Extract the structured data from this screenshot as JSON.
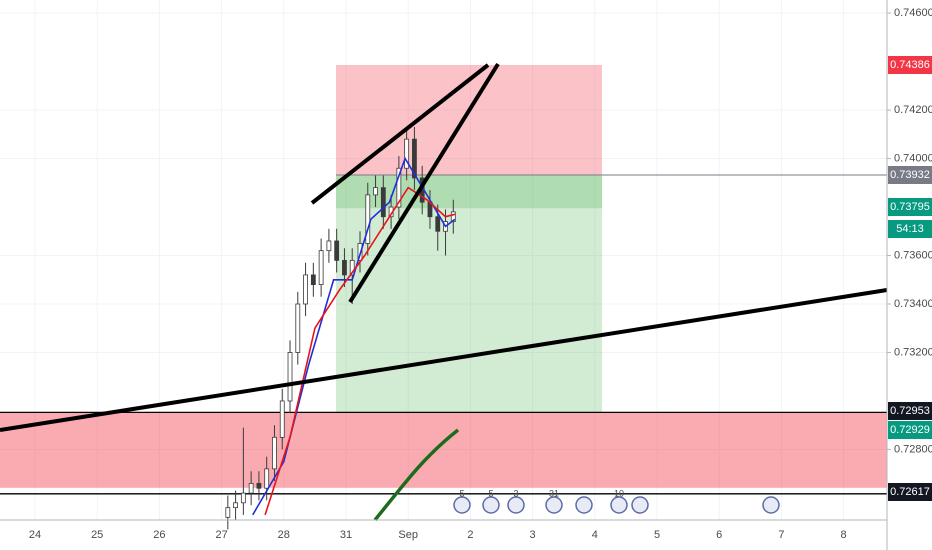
{
  "chart_data": {
    "type": "candlestick",
    "categories": [
      "24",
      "25",
      "26",
      "27",
      "28",
      "31",
      "Sep",
      "2",
      "3",
      "4",
      "5",
      "6",
      "7",
      "8"
    ],
    "x": [
      3.1,
      3.225,
      3.35,
      3.475,
      3.6,
      3.725,
      3.85,
      3.975,
      4.1,
      4.225,
      4.35,
      4.475,
      4.6,
      4.725,
      4.85,
      4.975,
      5.1,
      5.225,
      5.35,
      5.475,
      5.6,
      5.725,
      5.85,
      5.975,
      6.1,
      6.225,
      6.35,
      6.475,
      6.6,
      6.725
    ],
    "open": [
      0.7252,
      0.7256,
      0.7258,
      0.7262,
      0.7266,
      0.7264,
      0.7272,
      0.7285,
      0.73,
      0.732,
      0.734,
      0.7352,
      0.7348,
      0.7362,
      0.7366,
      0.7358,
      0.7352,
      0.7358,
      0.7365,
      0.7385,
      0.7388,
      0.7376,
      0.738,
      0.7396,
      0.7408,
      0.7392,
      0.7382,
      0.7376,
      0.737,
      0.7374
    ],
    "high": [
      0.7261,
      0.7263,
      0.7289,
      0.7271,
      0.7271,
      0.7277,
      0.729,
      0.7305,
      0.7325,
      0.7345,
      0.7357,
      0.7357,
      0.7367,
      0.7371,
      0.7371,
      0.7363,
      0.7363,
      0.737,
      0.739,
      0.7393,
      0.7393,
      0.7385,
      0.7401,
      0.7413,
      0.7413,
      0.7397,
      0.7387,
      0.7381,
      0.7379,
      0.7383
    ],
    "low": [
      0.7247,
      0.7251,
      0.7253,
      0.7257,
      0.7259,
      0.7259,
      0.7267,
      0.728,
      0.7295,
      0.7315,
      0.7335,
      0.7343,
      0.7343,
      0.7357,
      0.7353,
      0.7347,
      0.734,
      0.7353,
      0.736,
      0.738,
      0.7371,
      0.7371,
      0.7375,
      0.7391,
      0.7387,
      0.7377,
      0.7371,
      0.7362,
      0.736,
      0.7369
    ],
    "close": [
      0.7256,
      0.7258,
      0.7262,
      0.7266,
      0.7264,
      0.7272,
      0.7285,
      0.73,
      0.732,
      0.734,
      0.7352,
      0.7348,
      0.7362,
      0.7366,
      0.7358,
      0.7352,
      0.7358,
      0.7365,
      0.7385,
      0.7388,
      0.7376,
      0.738,
      0.7396,
      0.7408,
      0.7392,
      0.7382,
      0.7376,
      0.737,
      0.7374,
      0.7378
    ],
    "candle_color": "#3a3a3a",
    "series": [
      {
        "color": "#1f2fd6",
        "x": [
          3.5,
          4.0,
          4.4,
          4.8,
          5.1,
          5.4,
          5.7,
          5.95,
          6.3,
          6.6,
          6.75
        ],
        "values": [
          0.7253,
          0.7275,
          0.7315,
          0.735,
          0.735,
          0.7375,
          0.7382,
          0.74,
          0.7385,
          0.7372,
          0.7375
        ]
      },
      {
        "color": "#e8141b",
        "x": [
          3.7,
          4.1,
          4.5,
          4.9,
          5.3,
          5.7,
          6.0,
          6.3,
          6.6,
          6.75
        ],
        "values": [
          0.7253,
          0.7285,
          0.733,
          0.7346,
          0.736,
          0.7376,
          0.7388,
          0.7383,
          0.7376,
          0.7377
        ]
      }
    ],
    "ylim": [
      0.72509,
      0.74654
    ],
    "yticks": [
      {
        "value": 0.746,
        "label": "0.74600"
      },
      {
        "value": 0.742,
        "label": "0.74200"
      },
      {
        "value": 0.74,
        "label": "0.74000"
      },
      {
        "value": 0.736,
        "label": "0.73600"
      },
      {
        "value": 0.734,
        "label": "0.73400"
      },
      {
        "value": 0.732,
        "label": "0.73200"
      },
      {
        "value": 0.728,
        "label": "0.72800"
      }
    ],
    "price_labels": [
      {
        "value": 0.74386,
        "label": "0.74386",
        "color": "#f23645"
      },
      {
        "value": 0.73932,
        "label": "0.73932",
        "color": "#787b86"
      },
      {
        "value": 0.73795,
        "label": "0.73795",
        "color": "#089981"
      },
      {
        "value": 0.72953,
        "label": "0.72953",
        "color": "#131722"
      },
      {
        "value": 0.72929,
        "label": "0.72929",
        "color": "#089981"
      },
      {
        "value": 0.72617,
        "label": "0.72617",
        "color": "#131722"
      }
    ],
    "countdown": "54:13",
    "events": [
      "5",
      "5",
      "3",
      "31",
      "10"
    ]
  }
}
